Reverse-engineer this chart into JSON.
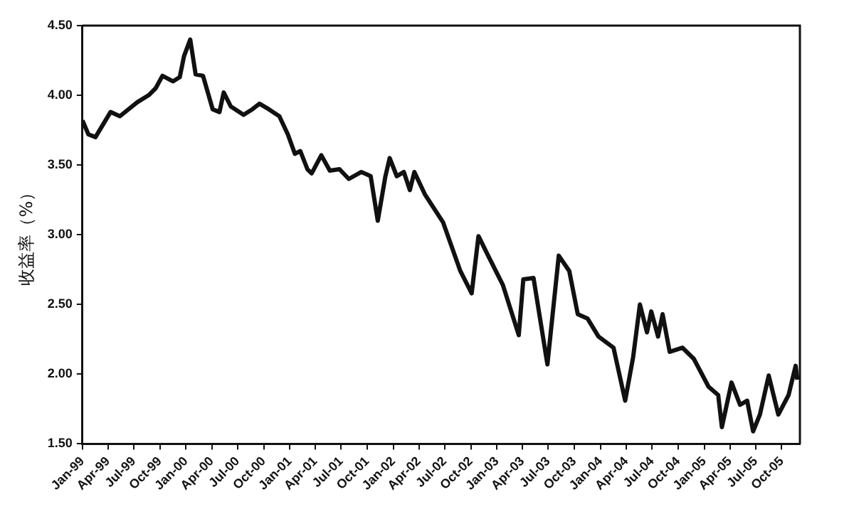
{
  "chart_data": {
    "type": "line",
    "ylabel": "收益率（%）",
    "grid": false,
    "legend": false,
    "marker": "none",
    "line_style": "solid",
    "xlim": [
      "1999-01-01",
      "2005-12-04"
    ],
    "xticks": [
      {
        "value": "1999-01-01",
        "label": "Jan-99"
      },
      {
        "value": "1999-04-01",
        "label": "Apr-99"
      },
      {
        "value": "1999-07-01",
        "label": "Jul-99"
      },
      {
        "value": "1999-10-01",
        "label": "Oct-99"
      },
      {
        "value": "2000-01-01",
        "label": "Jan-00"
      },
      {
        "value": "2000-04-01",
        "label": "Apr-00"
      },
      {
        "value": "2000-07-01",
        "label": "Jul-00"
      },
      {
        "value": "2000-10-01",
        "label": "Oct-00"
      },
      {
        "value": "2001-01-01",
        "label": "Jan-01"
      },
      {
        "value": "2001-04-01",
        "label": "Apr-01"
      },
      {
        "value": "2001-07-01",
        "label": "Jul-01"
      },
      {
        "value": "2001-10-01",
        "label": "Oct-01"
      },
      {
        "value": "2002-01-01",
        "label": "Jan-02"
      },
      {
        "value": "2002-04-01",
        "label": "Apr-02"
      },
      {
        "value": "2002-07-01",
        "label": "Jul-02"
      },
      {
        "value": "2002-10-01",
        "label": "Oct-02"
      },
      {
        "value": "2003-01-01",
        "label": "Jan-03"
      },
      {
        "value": "2003-04-01",
        "label": "Apr-03"
      },
      {
        "value": "2003-07-01",
        "label": "Jul-03"
      },
      {
        "value": "2003-10-01",
        "label": "Oct-03"
      },
      {
        "value": "2004-01-01",
        "label": "Jan-04"
      },
      {
        "value": "2004-04-01",
        "label": "Apr-04"
      },
      {
        "value": "2004-07-01",
        "label": "Jul-04"
      },
      {
        "value": "2004-10-01",
        "label": "Oct-04"
      },
      {
        "value": "2005-01-01",
        "label": "Jan-05"
      },
      {
        "value": "2005-04-01",
        "label": "Apr-05"
      },
      {
        "value": "2005-07-01",
        "label": "Jul-05"
      },
      {
        "value": "2005-10-01",
        "label": "Oct-05"
      }
    ],
    "ylim": [
      1.5,
      4.5
    ],
    "yticks": [
      {
        "value": 1.5,
        "label": "1.50"
      },
      {
        "value": 2,
        "label": "2.00"
      },
      {
        "value": 2.5,
        "label": "2.50"
      },
      {
        "value": 3,
        "label": "3.00"
      },
      {
        "value": 3.5,
        "label": "3.50"
      },
      {
        "value": 4,
        "label": "4.00"
      },
      {
        "value": 4.5,
        "label": "4.50"
      }
    ],
    "series": [
      {
        "color": "#111111",
        "x": [
          "1999-01-01",
          "1999-01-22",
          "1999-02-16",
          "1999-04-10",
          "1999-05-13",
          "1999-07-13",
          "1999-08-22",
          "1999-09-16",
          "1999-10-10",
          "1999-11-16",
          "1999-12-10",
          "1999-12-25",
          "2000-01-16",
          "2000-02-04",
          "2000-03-01",
          "2000-04-04",
          "2000-04-28",
          "2000-05-13",
          "2000-06-07",
          "2000-07-22",
          "2000-08-22",
          "2000-09-16",
          "2000-10-19",
          "2000-11-25",
          "2000-12-25",
          "2001-01-19",
          "2001-02-07",
          "2001-03-04",
          "2001-03-19",
          "2001-04-22",
          "2001-05-22",
          "2001-06-25",
          "2001-07-28",
          "2001-09-10",
          "2001-10-13",
          "2001-11-07",
          "2001-12-04",
          "2001-12-19",
          "2002-01-13",
          "2002-02-07",
          "2002-02-28",
          "2002-03-16",
          "2002-04-22",
          "2002-06-25",
          "2002-08-25",
          "2002-10-04",
          "2002-10-28",
          "2002-12-01",
          "2003-01-22",
          "2003-03-19",
          "2003-04-04",
          "2003-05-10",
          "2003-06-28",
          "2003-08-07",
          "2003-09-13",
          "2003-10-13",
          "2003-11-16",
          "2003-12-25",
          "2004-02-16",
          "2004-03-28",
          "2004-04-25",
          "2004-05-19",
          "2004-06-13",
          "2004-06-28",
          "2004-07-22",
          "2004-08-07",
          "2004-09-01",
          "2004-10-16",
          "2004-11-25",
          "2005-01-16",
          "2005-02-19",
          "2005-03-04",
          "2005-04-07",
          "2005-05-07",
          "2005-06-01",
          "2005-06-22",
          "2005-07-16",
          "2005-08-16",
          "2005-09-19",
          "2005-10-25",
          "2005-11-19",
          "2005-11-25"
        ],
        "values": [
          3.82,
          3.72,
          3.7,
          3.88,
          3.85,
          3.95,
          4.0,
          4.05,
          4.14,
          4.1,
          4.13,
          4.28,
          4.4,
          4.15,
          4.14,
          3.9,
          3.88,
          4.02,
          3.92,
          3.86,
          3.9,
          3.94,
          3.9,
          3.85,
          3.72,
          3.58,
          3.6,
          3.47,
          3.44,
          3.57,
          3.46,
          3.47,
          3.4,
          3.45,
          3.42,
          3.1,
          3.42,
          3.55,
          3.42,
          3.45,
          3.32,
          3.45,
          3.29,
          3.09,
          2.74,
          2.58,
          2.99,
          2.85,
          2.64,
          2.28,
          2.68,
          2.69,
          2.07,
          2.85,
          2.74,
          2.43,
          2.4,
          2.27,
          2.19,
          1.81,
          2.12,
          2.5,
          2.3,
          2.45,
          2.27,
          2.43,
          2.16,
          2.19,
          2.11,
          1.91,
          1.85,
          1.62,
          1.94,
          1.78,
          1.81,
          1.59,
          1.71,
          1.99,
          1.71,
          1.85,
          2.06,
          1.96
        ]
      }
    ]
  }
}
